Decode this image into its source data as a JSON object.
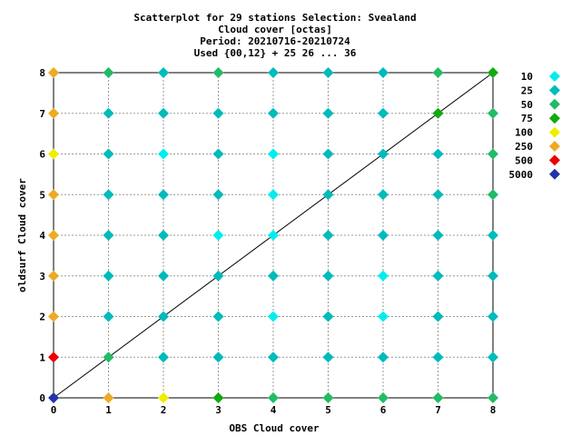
{
  "chart_data": {
    "type": "scatter",
    "title_lines": [
      "Scatterplot for   29 stations Selection: Svealand",
      "Cloud cover [octas]",
      "Period: 20210716-20210724",
      "Used {00,12} + 25 26 ... 36"
    ],
    "xlabel": "OBS Cloud cover",
    "ylabel": "oldsurf Cloud cover",
    "xlim": [
      0,
      8
    ],
    "ylim": [
      0,
      8
    ],
    "xticks": [
      "0",
      "1",
      "2",
      "3",
      "4",
      "5",
      "6",
      "7",
      "8"
    ],
    "yticks": [
      "0",
      "1",
      "2",
      "3",
      "4",
      "5",
      "6",
      "7",
      "8"
    ],
    "grid": true,
    "legend_position": "right",
    "diagonal_line": [
      [
        0,
        0
      ],
      [
        8,
        8
      ]
    ],
    "legend": [
      {
        "label": "10",
        "color": "#00eeee"
      },
      {
        "label": "25",
        "color": "#00bbbb"
      },
      {
        "label": "50",
        "color": "#22bb66"
      },
      {
        "label": "75",
        "color": "#11aa11"
      },
      {
        "label": "100",
        "color": "#eeee00"
      },
      {
        "label": "250",
        "color": "#eeaa22"
      },
      {
        "label": "500",
        "color": "#ee0000"
      },
      {
        "label": "5000",
        "color": "#2233aa"
      }
    ],
    "points": [
      {
        "x": 0,
        "y": 8,
        "level": "250"
      },
      {
        "x": 1,
        "y": 8,
        "level": "50"
      },
      {
        "x": 2,
        "y": 8,
        "level": "25"
      },
      {
        "x": 3,
        "y": 8,
        "level": "50"
      },
      {
        "x": 4,
        "y": 8,
        "level": "25"
      },
      {
        "x": 5,
        "y": 8,
        "level": "25"
      },
      {
        "x": 6,
        "y": 8,
        "level": "25"
      },
      {
        "x": 7,
        "y": 8,
        "level": "50"
      },
      {
        "x": 8,
        "y": 8,
        "level": "75"
      },
      {
        "x": 0,
        "y": 7,
        "level": "250"
      },
      {
        "x": 1,
        "y": 7,
        "level": "25"
      },
      {
        "x": 2,
        "y": 7,
        "level": "25"
      },
      {
        "x": 3,
        "y": 7,
        "level": "25"
      },
      {
        "x": 4,
        "y": 7,
        "level": "25"
      },
      {
        "x": 5,
        "y": 7,
        "level": "25"
      },
      {
        "x": 6,
        "y": 7,
        "level": "25"
      },
      {
        "x": 7,
        "y": 7,
        "level": "75"
      },
      {
        "x": 8,
        "y": 7,
        "level": "50"
      },
      {
        "x": 0,
        "y": 6,
        "level": "100"
      },
      {
        "x": 1,
        "y": 6,
        "level": "25"
      },
      {
        "x": 2,
        "y": 6,
        "level": "10"
      },
      {
        "x": 3,
        "y": 6,
        "level": "25"
      },
      {
        "x": 4,
        "y": 6,
        "level": "10"
      },
      {
        "x": 5,
        "y": 6,
        "level": "25"
      },
      {
        "x": 6,
        "y": 6,
        "level": "25"
      },
      {
        "x": 7,
        "y": 6,
        "level": "25"
      },
      {
        "x": 8,
        "y": 6,
        "level": "50"
      },
      {
        "x": 0,
        "y": 5,
        "level": "250"
      },
      {
        "x": 1,
        "y": 5,
        "level": "25"
      },
      {
        "x": 2,
        "y": 5,
        "level": "25"
      },
      {
        "x": 3,
        "y": 5,
        "level": "25"
      },
      {
        "x": 4,
        "y": 5,
        "level": "10"
      },
      {
        "x": 5,
        "y": 5,
        "level": "25"
      },
      {
        "x": 6,
        "y": 5,
        "level": "25"
      },
      {
        "x": 7,
        "y": 5,
        "level": "25"
      },
      {
        "x": 8,
        "y": 5,
        "level": "50"
      },
      {
        "x": 0,
        "y": 4,
        "level": "250"
      },
      {
        "x": 1,
        "y": 4,
        "level": "25"
      },
      {
        "x": 2,
        "y": 4,
        "level": "25"
      },
      {
        "x": 3,
        "y": 4,
        "level": "10"
      },
      {
        "x": 4,
        "y": 4,
        "level": "10"
      },
      {
        "x": 5,
        "y": 4,
        "level": "25"
      },
      {
        "x": 6,
        "y": 4,
        "level": "25"
      },
      {
        "x": 7,
        "y": 4,
        "level": "25"
      },
      {
        "x": 8,
        "y": 4,
        "level": "25"
      },
      {
        "x": 0,
        "y": 3,
        "level": "250"
      },
      {
        "x": 1,
        "y": 3,
        "level": "25"
      },
      {
        "x": 2,
        "y": 3,
        "level": "25"
      },
      {
        "x": 3,
        "y": 3,
        "level": "25"
      },
      {
        "x": 4,
        "y": 3,
        "level": "25"
      },
      {
        "x": 5,
        "y": 3,
        "level": "25"
      },
      {
        "x": 6,
        "y": 3,
        "level": "10"
      },
      {
        "x": 7,
        "y": 3,
        "level": "25"
      },
      {
        "x": 8,
        "y": 3,
        "level": "25"
      },
      {
        "x": 0,
        "y": 2,
        "level": "250"
      },
      {
        "x": 1,
        "y": 2,
        "level": "25"
      },
      {
        "x": 2,
        "y": 2,
        "level": "25"
      },
      {
        "x": 3,
        "y": 2,
        "level": "25"
      },
      {
        "x": 4,
        "y": 2,
        "level": "10"
      },
      {
        "x": 5,
        "y": 2,
        "level": "25"
      },
      {
        "x": 6,
        "y": 2,
        "level": "10"
      },
      {
        "x": 7,
        "y": 2,
        "level": "25"
      },
      {
        "x": 8,
        "y": 2,
        "level": "25"
      },
      {
        "x": 0,
        "y": 1,
        "level": "500"
      },
      {
        "x": 1,
        "y": 1,
        "level": "50"
      },
      {
        "x": 2,
        "y": 1,
        "level": "25"
      },
      {
        "x": 3,
        "y": 1,
        "level": "25"
      },
      {
        "x": 4,
        "y": 1,
        "level": "25"
      },
      {
        "x": 5,
        "y": 1,
        "level": "25"
      },
      {
        "x": 6,
        "y": 1,
        "level": "25"
      },
      {
        "x": 7,
        "y": 1,
        "level": "25"
      },
      {
        "x": 8,
        "y": 1,
        "level": "25"
      },
      {
        "x": 0,
        "y": 0,
        "level": "5000"
      },
      {
        "x": 1,
        "y": 0,
        "level": "250"
      },
      {
        "x": 2,
        "y": 0,
        "level": "100"
      },
      {
        "x": 3,
        "y": 0,
        "level": "75"
      },
      {
        "x": 4,
        "y": 0,
        "level": "50"
      },
      {
        "x": 5,
        "y": 0,
        "level": "50"
      },
      {
        "x": 6,
        "y": 0,
        "level": "50"
      },
      {
        "x": 7,
        "y": 0,
        "level": "50"
      },
      {
        "x": 8,
        "y": 0,
        "level": "50"
      }
    ]
  }
}
